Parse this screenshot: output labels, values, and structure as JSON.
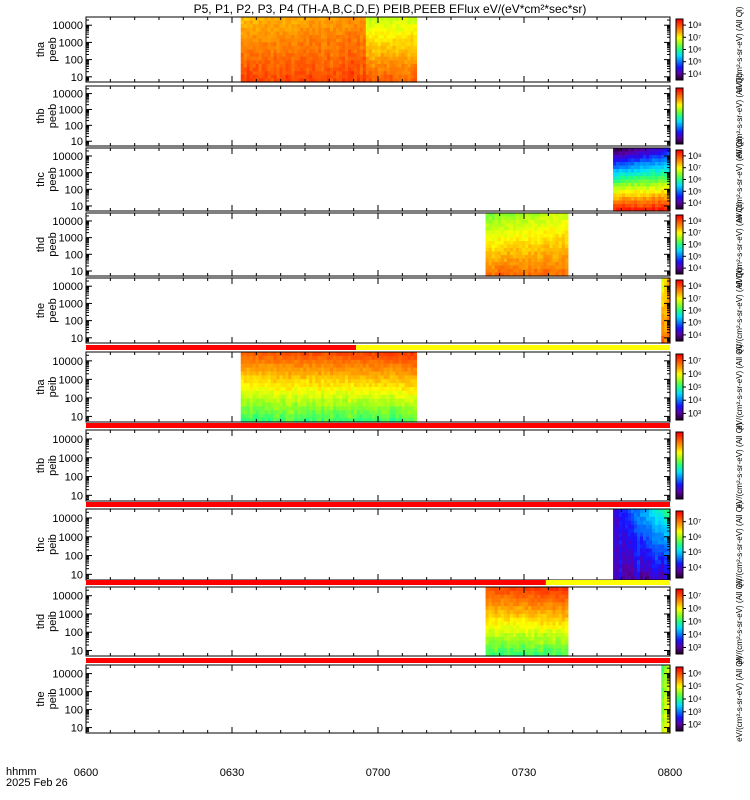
{
  "title": "P5, P1, P2, P3, P4 (TH-A,B,C,D,E) PEIB,PEEB EFlux eV/(eV*cm²*sec*sr)",
  "footer": {
    "label1": "hhmm",
    "label2": "2025 Feb 26"
  },
  "colors": {
    "status_red": "#ff0000",
    "status_yellow": "#ffff00",
    "colormap": [
      "#2a0036",
      "#5a00a8",
      "#1a10ff",
      "#0080ff",
      "#00e0ff",
      "#20ff80",
      "#90ff20",
      "#ffff00",
      "#ffa000",
      "#ff5000",
      "#ff0000"
    ]
  },
  "chart_data": {
    "type": "heatmap",
    "x_tick_labels": [
      "0600",
      "0630",
      "0700",
      "0730",
      "0800"
    ],
    "x_ticks_min": [
      0,
      30,
      60,
      90,
      120
    ],
    "xlim_min": [
      0,
      120
    ],
    "y_tick_labels": [
      "10",
      "100",
      "1000",
      "10000"
    ],
    "y_scale": "log",
    "ylim": [
      5,
      30000
    ],
    "panels": [
      {
        "id": "tha-peeb",
        "ylabel1": "tha",
        "ylabel2": "peeb",
        "cb_label": "eV/(cm²-s-sr-eV) (All Ql)",
        "cb_ticks": [
          "10⁴",
          "10⁵",
          "10⁶",
          "10⁷",
          "10⁸"
        ],
        "cb_exp": [
          4,
          5,
          6,
          7,
          8
        ],
        "cb_range": [
          3.5,
          8.5
        ],
        "blocks": [
          {
            "t0": 31.8,
            "t1": 57.5,
            "y_hi_min": 7.35,
            "y_hi_max": 7.6,
            "y_lo_min": 7.9,
            "y_lo_max": 8.2
          },
          {
            "t0": 57.5,
            "t1": 67.9,
            "y_hi_min": 6.7,
            "y_hi_max": 6.8,
            "y_lo_min": 7.8,
            "y_lo_max": 8.0
          }
        ]
      },
      {
        "id": "thb-peeb",
        "ylabel1": "thb",
        "ylabel2": "peeb",
        "cb_label": "eV/(cm²-s-sr-eV) (All Ql)",
        "cb_ticks": [],
        "cb_exp": [],
        "cb_range": [
          3.5,
          8.5
        ],
        "blocks": []
      },
      {
        "id": "thc-peeb",
        "ylabel1": "thc",
        "ylabel2": "peeb",
        "cb_label": "eV/(cm²-s-sr-eV) (All Ql)",
        "cb_ticks": [
          "10⁴",
          "10⁵",
          "10⁶",
          "10⁷",
          "10⁸"
        ],
        "cb_exp": [
          4,
          5,
          6,
          7,
          8
        ],
        "cb_range": [
          3.5,
          8.5
        ],
        "blocks": [
          {
            "t0": 108.3,
            "t1": 120,
            "y_hi_min": 3.6,
            "y_hi_max": 4.4,
            "y_lo_min": 8.2,
            "y_lo_max": 8.4
          }
        ]
      },
      {
        "id": "thd-peeb",
        "ylabel1": "thd",
        "ylabel2": "peeb",
        "cb_label": "eV/(cm²-s-sr-eV) (All Ql)",
        "cb_ticks": [
          "10⁴",
          "10⁵",
          "10⁶",
          "10⁷",
          "10⁸"
        ],
        "cb_exp": [
          4,
          5,
          6,
          7,
          8
        ],
        "cb_range": [
          3.5,
          8.5
        ],
        "blocks": [
          {
            "t0": 82.1,
            "t1": 99.0,
            "y_hi_min": 6.4,
            "y_hi_max": 6.8,
            "y_lo_min": 7.7,
            "y_lo_max": 7.9
          }
        ]
      },
      {
        "id": "the-peeb",
        "ylabel1": "the",
        "ylabel2": "peeb",
        "cb_label": "eV/(cm²-s-sr-eV) (All Ql)",
        "cb_ticks": [
          "10⁴",
          "10⁵",
          "10⁶",
          "10⁷",
          "10⁸"
        ],
        "cb_exp": [
          4,
          5,
          6,
          7,
          8
        ],
        "cb_range": [
          3.5,
          8.5
        ],
        "blocks": [
          {
            "t0": 118.2,
            "t1": 120,
            "y_hi_min": 6.8,
            "y_hi_max": 7.6,
            "y_lo_min": 7.4,
            "y_lo_max": 8.0
          }
        ]
      },
      {
        "id": "tha-peib",
        "ylabel1": "tha",
        "ylabel2": "peib",
        "cb_label": "eV/(cm²-s-sr-eV) (All Ql)",
        "cb_ticks": [
          "10³",
          "10⁴",
          "10⁵",
          "10⁶",
          "10⁷"
        ],
        "cb_exp": [
          3,
          4,
          5,
          6,
          7
        ],
        "cb_range": [
          2.5,
          7.5
        ],
        "status_bar": [
          {
            "t0": 0,
            "t1": 55.5,
            "color": "red"
          },
          {
            "t0": 55.5,
            "t1": 120,
            "color": "yellow"
          }
        ],
        "blocks": [
          {
            "t0": 31.8,
            "t1": 67.9,
            "y_hi_min": 6.9,
            "y_hi_max": 7.1,
            "y_lo_min": 5.0,
            "y_lo_max": 5.3
          }
        ]
      },
      {
        "id": "thb-peib",
        "ylabel1": "thb",
        "ylabel2": "peib",
        "cb_label": "eV/(cm²-s-sr-eV) (All Ql)",
        "cb_ticks": [],
        "cb_exp": [],
        "cb_range": [
          2.5,
          7.5
        ],
        "status_bar": [
          {
            "t0": 0,
            "t1": 120,
            "color": "red"
          }
        ],
        "blocks": []
      },
      {
        "id": "thc-peib",
        "ylabel1": "thc",
        "ylabel2": "peib",
        "cb_label": "eV/(cm²-s-sr-eV) (All Ql)",
        "cb_ticks": [
          "10⁴",
          "10⁵",
          "10⁶",
          "10⁷"
        ],
        "cb_exp": [
          4,
          5,
          6,
          7
        ],
        "cb_range": [
          3.3,
          7.7
        ],
        "status_bar": [
          {
            "t0": 0,
            "t1": 120,
            "color": "red"
          }
        ],
        "blocks": [
          {
            "t0": 108.3,
            "t1": 120,
            "y_hi_min": 4.0,
            "y_hi_max": 5.5,
            "y_lo_min": 3.6,
            "y_lo_max": 4.2
          }
        ]
      },
      {
        "id": "thd-peib",
        "ylabel1": "thd",
        "ylabel2": "peib",
        "cb_label": "eV/(cm²-s-sr-eV) (All Ql)",
        "cb_ticks": [
          "10³",
          "10⁴",
          "10⁵",
          "10⁶",
          "10⁷"
        ],
        "cb_exp": [
          3,
          4,
          5,
          6,
          7
        ],
        "cb_range": [
          2.5,
          7.5
        ],
        "status_bar": [
          {
            "t0": 0,
            "t1": 94.5,
            "color": "red"
          },
          {
            "t0": 94.5,
            "t1": 120,
            "color": "yellow"
          }
        ],
        "blocks": [
          {
            "t0": 82.1,
            "t1": 99.0,
            "y_hi_min": 7.0,
            "y_hi_max": 7.2,
            "y_lo_min": 5.0,
            "y_lo_max": 5.3
          }
        ]
      },
      {
        "id": "the-peib",
        "ylabel1": "the",
        "ylabel2": "peib",
        "cb_label": "eV/(cm²-s-sr-eV) (All Ql)",
        "cb_ticks": [
          "10²",
          "10³",
          "10⁴",
          "10⁵",
          "10⁶"
        ],
        "cb_exp": [
          2,
          3,
          4,
          5,
          6
        ],
        "cb_range": [
          1.5,
          6.5
        ],
        "status_bar": [
          {
            "t0": 0,
            "t1": 120,
            "color": "red"
          }
        ],
        "blocks": [
          {
            "t0": 118.2,
            "t1": 120,
            "y_hi_min": 4.2,
            "y_hi_max": 4.8,
            "y_lo_min": 4.6,
            "y_lo_max": 5.2
          }
        ]
      }
    ]
  }
}
